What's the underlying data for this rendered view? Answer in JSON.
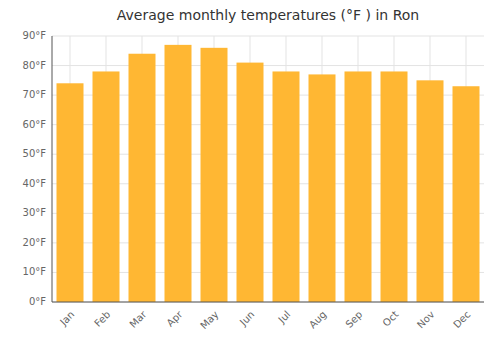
{
  "chart_data": {
    "type": "bar",
    "title": "Average monthly temperatures (°F ) in Ron",
    "categories": [
      "Jan",
      "Feb",
      "Mar",
      "Apr",
      "May",
      "Jun",
      "Jul",
      "Aug",
      "Sep",
      "Oct",
      "Nov",
      "Dec"
    ],
    "values": [
      74,
      78,
      84,
      87,
      86,
      81,
      78,
      77,
      78,
      78,
      75,
      73
    ],
    "color": "#FFB733",
    "ylim": [
      0,
      90
    ],
    "yticks": [
      {
        "value": 0,
        "label": "0°F"
      },
      {
        "value": 10,
        "label": "10°F"
      },
      {
        "value": 20,
        "label": "20°F"
      },
      {
        "value": 30,
        "label": "30°F"
      },
      {
        "value": 40,
        "label": "40°F"
      },
      {
        "value": 50,
        "label": "50°F"
      },
      {
        "value": 60,
        "label": "60°F"
      },
      {
        "value": 70,
        "label": "70°F"
      },
      {
        "value": 80,
        "label": "80°F"
      },
      {
        "value": 90,
        "label": "90°F"
      }
    ],
    "grid": true
  }
}
